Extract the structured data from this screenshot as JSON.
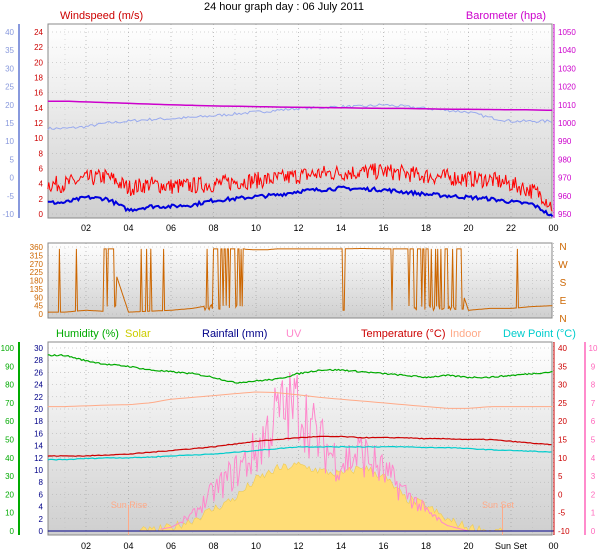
{
  "title": "24 hour graph day : 06 July 2011",
  "colors": {
    "windspeed": "#ff0000",
    "windavg": "#0000dd",
    "barometer": "#cc00cc",
    "pressure_trace": "#99aaee",
    "winddir": "#cc6600",
    "humidity": "#00aa00",
    "solar": "#ffdd77",
    "rainfall": "#000088",
    "uv": "#ff88cc",
    "temperature": "#cc0000",
    "indoor": "#ffaa88",
    "dewpoint": "#00cccc"
  },
  "x_ticks": [
    "02",
    "04",
    "06",
    "08",
    "10",
    "12",
    "14",
    "16",
    "18",
    "20",
    "22",
    "00"
  ],
  "x_ticks_bottom": [
    "02",
    "04",
    "06",
    "08",
    "10",
    "12",
    "14",
    "16",
    "18",
    "20",
    "Sun Set",
    "00"
  ],
  "chart_data": [
    {
      "type": "line",
      "title": "Windspeed (m/s)",
      "right_title": "Barometer (hpa)",
      "y_left_ticks": [
        "0",
        "2",
        "4",
        "6",
        "8",
        "10",
        "12",
        "14",
        "16",
        "18",
        "20",
        "22",
        "24"
      ],
      "y_left_ticks_outer": [
        "-10",
        "-5",
        "0",
        "5",
        "10",
        "15",
        "20",
        "25",
        "30",
        "35",
        "40"
      ],
      "y_right_ticks": [
        "950",
        "960",
        "970",
        "980",
        "990",
        "1000",
        "1010",
        "1020",
        "1030",
        "1040",
        "1050"
      ],
      "ylim_left": [
        0,
        25
      ],
      "ylim_right": [
        948,
        1052
      ],
      "ylim_outer": [
        -10,
        41
      ],
      "x": [
        1,
        2,
        3,
        4,
        5,
        6,
        7,
        8,
        9,
        10,
        11,
        12,
        13,
        14,
        15,
        16,
        17,
        18,
        19,
        20,
        21,
        22,
        23,
        23.5,
        24
      ],
      "series": [
        {
          "name": "Barometer (hpa)",
          "axis": "right",
          "values": [
            1012,
            1011.6,
            1011.2,
            1010.8,
            1010.4,
            1010,
            1009.7,
            1009.4,
            1009.2,
            1009,
            1008.8,
            1008.6,
            1008.5,
            1008.4,
            1008.2,
            1008,
            1008,
            1007.8,
            1007.6,
            1007.5,
            1007.4,
            1007.3,
            1007.2,
            1007.1,
            1007
          ]
        },
        {
          "values": [
            13.5,
            14,
            15,
            15.5,
            16,
            16.2,
            16.5,
            17,
            17.5,
            18,
            18.5,
            19,
            19.2,
            19.5,
            19.5,
            20,
            19.5,
            19,
            18.5,
            18,
            16.5,
            15.5,
            15.5,
            15.5,
            15.5
          ]
        },
        {
          "values": [
            3.5,
            4.2,
            4.5,
            3.0,
            3.5,
            3.2,
            3.3,
            3.5,
            3.8,
            4.0,
            4.2,
            4.6,
            4.9,
            5.0,
            5.1,
            5.2,
            4.9,
            4.6,
            4.4,
            4.2,
            4.1,
            3.5,
            2.6,
            2.0,
            0.3
          ]
        },
        {
          "values": [
            1.5,
            2.2,
            2.0,
            0.5,
            1.0,
            1.0,
            1.2,
            1.8,
            2.0,
            2.3,
            2.5,
            3.0,
            3.2,
            3.4,
            3.3,
            3.2,
            2.9,
            2.6,
            2.4,
            2.2,
            2.0,
            1.6,
            1.3,
            0.5,
            -0.5
          ]
        }
      ],
      "annotations": []
    },
    {
      "type": "line",
      "y_ticks": [
        "0",
        "45",
        "90",
        "135",
        "180",
        "225",
        "270",
        "315",
        "360"
      ],
      "y_right_labels": [
        "N",
        "W",
        "S",
        "E",
        "N"
      ],
      "ylim": [
        0,
        360
      ],
      "x": [
        1,
        2,
        2.8,
        3,
        4,
        5,
        6,
        7,
        7.5,
        8,
        9,
        10,
        10.5,
        11,
        12,
        13,
        14,
        15,
        16,
        17,
        18,
        19,
        20,
        21,
        22,
        23,
        24
      ],
      "series": [
        {
          "values": [
            10,
            20,
            15,
            355,
            10,
            15,
            20,
            30,
            40,
            350,
            350,
            345,
            345,
            350,
            350,
            350,
            350,
            352,
            350,
            350,
            350,
            350,
            20,
            30,
            30,
            40,
            45
          ]
        }
      ]
    },
    {
      "type": "line",
      "titles": [
        "Humidity (%)",
        "Solar",
        "Rainfall (mm)",
        "UV",
        "Temperature (°C)",
        "Indoor",
        "Dew Point (°C)"
      ],
      "y_left_ticks": [
        "0",
        "10",
        "20",
        "30",
        "40",
        "50",
        "60",
        "70",
        "80",
        "90",
        "100"
      ],
      "y_mid_ticks": [
        "0",
        "2",
        "4",
        "6",
        "8",
        "10",
        "12",
        "14",
        "16",
        "18",
        "20",
        "22",
        "24",
        "26",
        "28",
        "30"
      ],
      "y_right_ticks": [
        "-10",
        "-5",
        "0",
        "5",
        "10",
        "15",
        "20",
        "25",
        "30",
        "35",
        "40"
      ],
      "y_uv_ticks": [
        "0",
        "1",
        "2",
        "3",
        "4",
        "5",
        "6",
        "7",
        "8",
        "9",
        "10"
      ],
      "ylim_left": [
        0,
        100
      ],
      "ylim_right": [
        -10,
        40
      ],
      "ylim_uv": [
        0,
        10
      ],
      "x": [
        1,
        2,
        3,
        4,
        5,
        6,
        7,
        8,
        9,
        10,
        11,
        12,
        13,
        14,
        15,
        16,
        17,
        18,
        19,
        20,
        21,
        22,
        23,
        24
      ],
      "series": [
        {
          "name": "Humidity (%)",
          "axis": "left",
          "values": [
            96,
            93,
            91,
            90,
            88,
            87,
            86,
            84,
            81,
            82,
            83,
            86,
            88,
            88,
            87,
            86,
            85,
            84,
            85,
            84,
            84,
            85,
            86,
            87
          ]
        },
        {
          "name": "Indoor",
          "axis": "right",
          "values": [
            24,
            24.2,
            24.4,
            24.5,
            25,
            26,
            26.5,
            27,
            27.5,
            28,
            27.8,
            27.2,
            26.5,
            26,
            25.5,
            25,
            24.5,
            24,
            23.5,
            23.5,
            24,
            24,
            24,
            24
          ]
        },
        {
          "name": "Temperature (°C)",
          "axis": "right",
          "values": [
            10.5,
            10.5,
            10.8,
            11,
            11.5,
            12,
            12.5,
            13,
            13.8,
            14.5,
            15,
            15.5,
            15.8,
            15.8,
            15.5,
            15.5,
            15.5,
            15.2,
            15.2,
            15,
            15,
            14.5,
            14,
            13.5
          ]
        },
        {
          "name": "Dew Point (°C)",
          "axis": "right",
          "values": [
            9.5,
            9.8,
            10,
            10,
            10.2,
            10.5,
            10.8,
            11,
            11.5,
            12,
            12.5,
            13,
            13,
            13,
            13,
            13,
            13,
            12.8,
            12.8,
            12.5,
            12.2,
            12,
            11.8,
            11.5
          ]
        },
        {
          "name": "UV",
          "axis": "uv",
          "values": [
            0,
            0,
            0,
            0,
            0,
            0.2,
            0.8,
            2,
            3,
            4,
            6,
            6.5,
            4.5,
            3.5,
            4,
            3,
            2,
            1,
            0.3,
            0,
            0,
            0,
            0,
            0
          ]
        },
        {
          "name": "Solar",
          "axis": "left",
          "values": [
            0,
            0,
            0,
            0,
            0,
            2,
            6,
            12,
            18,
            28,
            34,
            36,
            33,
            31,
            35,
            30,
            18,
            14,
            6,
            2,
            0,
            0,
            0,
            0
          ]
        }
      ],
      "annotations": [
        "Sun Rise",
        "Sun Set"
      ],
      "sunrise_hour": 4.0,
      "sunset_hour": 21.6
    }
  ]
}
